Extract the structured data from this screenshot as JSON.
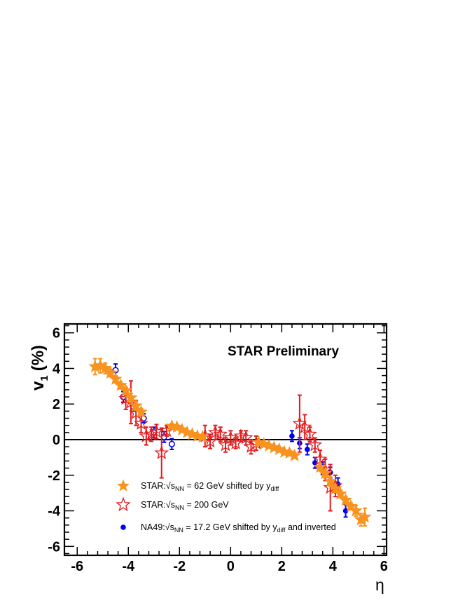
{
  "chart_data": {
    "type": "scatter",
    "title": "STAR Preliminary",
    "xlabel": "η",
    "ylabel_main": "v",
    "ylabel_sub": "1",
    "ylabel_unit": "(%)",
    "xlim": [
      -6.5,
      6.1
    ],
    "ylim": [
      -6.5,
      6.5
    ],
    "xticks": [
      "-6",
      "-4",
      "-2",
      "0",
      "2",
      "4",
      "6"
    ],
    "yticks": [
      "-6",
      "-4",
      "-2",
      "0",
      "2",
      "4",
      "6"
    ],
    "colors": {
      "orange": "#f7931e",
      "red": "#e41a1c",
      "blue": "#0000ee",
      "axis": "#000000"
    },
    "series": [
      {
        "name": "STAR 62 GeV shifted",
        "legend_prefix": "STAR:",
        "legend_var": "s",
        "legend_var_sub": "NN",
        "legend_suffix": " = 62 GeV shifted by y",
        "legend_suffix_sub": "diff",
        "legend_tail": "",
        "marker": "star-filled",
        "color": "#f7931e",
        "points": [
          [
            -5.3,
            4.1,
            0.45
          ],
          [
            -5.1,
            4.15,
            0.4
          ],
          [
            -4.9,
            4.0,
            0.3
          ],
          [
            -4.7,
            3.75,
            0.2
          ],
          [
            -4.5,
            3.4,
            0.2
          ],
          [
            -4.3,
            3.05,
            0.2
          ],
          [
            -4.1,
            2.75,
            0.2
          ],
          [
            -3.9,
            2.35,
            0.25
          ],
          [
            -3.7,
            1.9,
            0.25
          ],
          [
            -3.5,
            1.55,
            0.2
          ],
          [
            -2.3,
            0.75,
            0.15
          ],
          [
            -2.1,
            0.7,
            0.15
          ],
          [
            -1.9,
            0.55,
            0.12
          ],
          [
            -1.7,
            0.4,
            0.1
          ],
          [
            -1.5,
            0.3,
            0.1
          ],
          [
            -1.3,
            0.2,
            0.1
          ],
          [
            -1.1,
            0.15,
            0.1
          ],
          [
            1.1,
            -0.15,
            0.1
          ],
          [
            1.3,
            -0.25,
            0.1
          ],
          [
            1.5,
            -0.35,
            0.1
          ],
          [
            1.7,
            -0.45,
            0.1
          ],
          [
            1.9,
            -0.55,
            0.12
          ],
          [
            2.1,
            -0.7,
            0.15
          ],
          [
            2.3,
            -0.75,
            0.15
          ],
          [
            2.5,
            -0.9,
            0.15
          ],
          [
            3.5,
            -1.55,
            0.2
          ],
          [
            3.7,
            -1.9,
            0.25
          ],
          [
            3.9,
            -2.35,
            0.25
          ],
          [
            4.1,
            -2.75,
            0.2
          ],
          [
            4.3,
            -3.05,
            0.2
          ],
          [
            4.5,
            -3.4,
            0.2
          ],
          [
            4.7,
            -3.75,
            0.2
          ],
          [
            4.9,
            -4.0,
            0.3
          ],
          [
            5.1,
            -4.5,
            0.35
          ],
          [
            5.25,
            -4.35,
            0.5
          ]
        ]
      },
      {
        "name": "STAR 200 GeV",
        "legend_prefix": "STAR:",
        "legend_var": "s",
        "legend_var_sub": "NN",
        "legend_suffix": " = 200 GeV",
        "legend_suffix_sub": "",
        "legend_tail": "",
        "marker": "star-open",
        "color": "#e41a1c",
        "points": [
          [
            -4.1,
            2.3,
            0.6
          ],
          [
            -3.9,
            2.1,
            1.2
          ],
          [
            -3.7,
            1.5,
            0.7
          ],
          [
            -3.5,
            0.9,
            0.5
          ],
          [
            -3.3,
            0.2,
            0.5
          ],
          [
            -3.1,
            0.3,
            0.4
          ],
          [
            -2.9,
            0.45,
            0.4
          ],
          [
            -2.7,
            -0.75,
            1.4
          ],
          [
            -2.5,
            0.5,
            0.3
          ],
          [
            -1.0,
            0.2,
            0.6
          ],
          [
            -0.8,
            -0.1,
            0.4
          ],
          [
            -0.6,
            0.4,
            0.4
          ],
          [
            -0.4,
            0.3,
            0.4
          ],
          [
            -0.2,
            -0.3,
            0.4
          ],
          [
            0.0,
            0.1,
            0.4
          ],
          [
            0.2,
            -0.2,
            0.3
          ],
          [
            0.4,
            0.2,
            0.3
          ],
          [
            0.6,
            0.1,
            0.4
          ],
          [
            0.8,
            -0.4,
            0.4
          ],
          [
            1.0,
            -0.2,
            0.4
          ],
          [
            2.7,
            0.9,
            1.6
          ],
          [
            2.9,
            0.7,
            0.7
          ],
          [
            3.1,
            0.3,
            0.4
          ],
          [
            3.3,
            -0.3,
            0.4
          ],
          [
            3.5,
            -1.1,
            0.5
          ],
          [
            3.7,
            -1.7,
            0.6
          ],
          [
            3.9,
            -2.7,
            1.3
          ],
          [
            4.1,
            -2.6,
            0.6
          ]
        ]
      },
      {
        "name": "NA49 17.2 GeV shifted and inverted",
        "legend_prefix": "NA49:",
        "legend_var": "s",
        "legend_var_sub": "NN",
        "legend_suffix": " = 17.2 GeV shifted by y",
        "legend_suffix_sub": "diff",
        "legend_tail": " and inverted",
        "marker": "circle",
        "color": "#0000ee",
        "points_open": [
          [
            -4.5,
            3.9,
            0.35
          ],
          [
            -4.2,
            2.4,
            0.3
          ],
          [
            -3.8,
            1.85,
            0.25
          ],
          [
            -3.4,
            1.2,
            0.25
          ],
          [
            -3.0,
            0.4,
            0.3
          ],
          [
            -2.6,
            0.15,
            0.3
          ],
          [
            -2.3,
            -0.25,
            0.3
          ]
        ],
        "points_filled": [
          [
            2.4,
            0.2,
            0.3
          ],
          [
            2.7,
            -0.2,
            0.3
          ],
          [
            3.0,
            -0.55,
            0.3
          ],
          [
            3.3,
            -1.3,
            0.3
          ],
          [
            3.6,
            -1.6,
            0.35
          ],
          [
            3.9,
            -1.85,
            0.3
          ],
          [
            4.2,
            -2.5,
            0.35
          ],
          [
            4.5,
            -4.0,
            0.35
          ]
        ]
      }
    ],
    "reference_line": 0
  }
}
